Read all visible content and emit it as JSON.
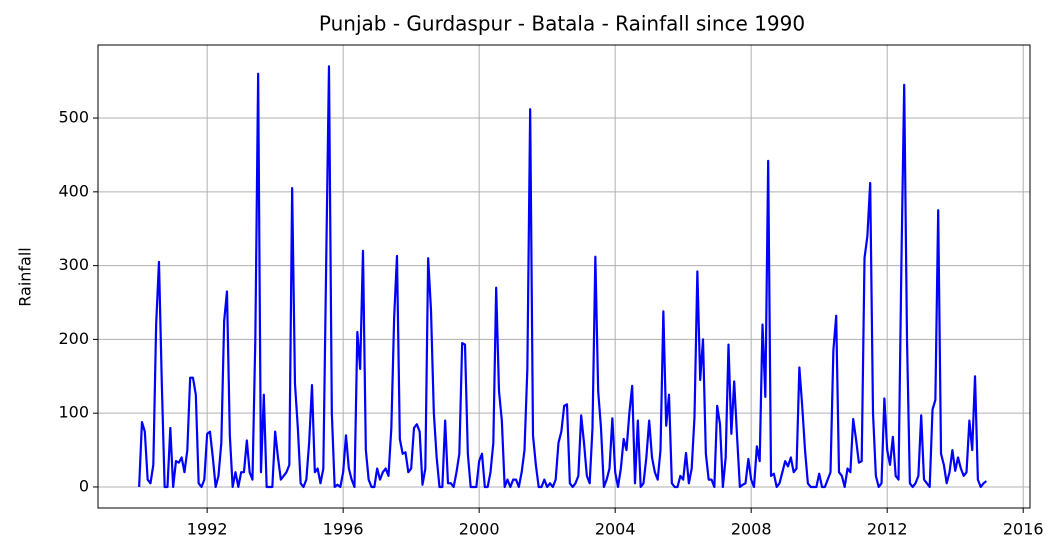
{
  "chart_data": {
    "type": "line",
    "title": "Punjab - Gurdaspur - Batala - Rainfall since 1990",
    "y_label": "Rainfall",
    "xlim": [
      1988.79,
      2016.2
    ],
    "ylim": [
      -28.5,
      599
    ],
    "xticks": [
      1992,
      1996,
      2000,
      2004,
      2008,
      2012,
      2016
    ],
    "yticks": [
      0,
      100,
      200,
      300,
      400,
      500
    ],
    "grid": true,
    "x": [
      1990,
      1990.083,
      1990.167,
      1990.25,
      1990.333,
      1990.417,
      1990.5,
      1990.583,
      1990.667,
      1990.75,
      1990.833,
      1990.917,
      1991,
      1991.083,
      1991.167,
      1991.25,
      1991.333,
      1991.417,
      1991.5,
      1991.583,
      1991.667,
      1991.75,
      1991.833,
      1991.917,
      1992,
      1992.083,
      1992.167,
      1992.25,
      1992.333,
      1992.417,
      1992.5,
      1992.583,
      1992.667,
      1992.75,
      1992.833,
      1992.917,
      1993,
      1993.083,
      1993.167,
      1993.25,
      1993.333,
      1993.417,
      1993.5,
      1993.583,
      1993.667,
      1993.75,
      1993.833,
      1993.917,
      1994,
      1994.083,
      1994.167,
      1994.25,
      1994.333,
      1994.417,
      1994.5,
      1994.583,
      1994.667,
      1994.75,
      1994.833,
      1994.917,
      1995,
      1995.083,
      1995.167,
      1995.25,
      1995.333,
      1995.417,
      1995.5,
      1995.583,
      1995.667,
      1995.75,
      1995.833,
      1995.917,
      1996,
      1996.083,
      1996.167,
      1996.25,
      1996.333,
      1996.417,
      1996.5,
      1996.583,
      1996.667,
      1996.75,
      1996.833,
      1996.917,
      1997,
      1997.083,
      1997.167,
      1997.25,
      1997.333,
      1997.417,
      1997.5,
      1997.583,
      1997.667,
      1997.75,
      1997.833,
      1997.917,
      1998,
      1998.083,
      1998.167,
      1998.25,
      1998.333,
      1998.417,
      1998.5,
      1998.583,
      1998.667,
      1998.75,
      1998.833,
      1998.917,
      1999,
      1999.083,
      1999.167,
      1999.25,
      1999.333,
      1999.417,
      1999.5,
      1999.583,
      1999.667,
      1999.75,
      1999.833,
      1999.917,
      2000,
      2000.083,
      2000.167,
      2000.25,
      2000.333,
      2000.417,
      2000.5,
      2000.583,
      2000.667,
      2000.75,
      2000.833,
      2000.917,
      2001,
      2001.083,
      2001.167,
      2001.25,
      2001.333,
      2001.417,
      2001.5,
      2001.583,
      2001.667,
      2001.75,
      2001.833,
      2001.917,
      2002,
      2002.083,
      2002.167,
      2002.25,
      2002.333,
      2002.417,
      2002.5,
      2002.583,
      2002.667,
      2002.75,
      2002.833,
      2002.917,
      2003,
      2003.083,
      2003.167,
      2003.25,
      2003.333,
      2003.417,
      2003.5,
      2003.583,
      2003.667,
      2003.75,
      2003.833,
      2003.917,
      2004,
      2004.083,
      2004.167,
      2004.25,
      2004.333,
      2004.417,
      2004.5,
      2004.583,
      2004.667,
      2004.75,
      2004.833,
      2004.917,
      2005,
      2005.083,
      2005.167,
      2005.25,
      2005.333,
      2005.417,
      2005.5,
      2005.583,
      2005.667,
      2005.75,
      2005.833,
      2005.917,
      2006,
      2006.083,
      2006.167,
      2006.25,
      2006.333,
      2006.417,
      2006.5,
      2006.583,
      2006.667,
      2006.75,
      2006.833,
      2006.917,
      2007,
      2007.083,
      2007.167,
      2007.25,
      2007.333,
      2007.417,
      2007.5,
      2007.583,
      2007.667,
      2007.75,
      2007.833,
      2007.917,
      2008,
      2008.083,
      2008.167,
      2008.25,
      2008.333,
      2008.417,
      2008.5,
      2008.583,
      2008.667,
      2008.75,
      2008.833,
      2008.917,
      2009,
      2009.083,
      2009.167,
      2009.25,
      2009.333,
      2009.417,
      2009.5,
      2009.583,
      2009.667,
      2009.75,
      2009.833,
      2009.917,
      2010,
      2010.083,
      2010.167,
      2010.25,
      2010.333,
      2010.417,
      2010.5,
      2010.583,
      2010.667,
      2010.75,
      2010.833,
      2010.917,
      2011,
      2011.083,
      2011.167,
      2011.25,
      2011.333,
      2011.417,
      2011.5,
      2011.583,
      2011.667,
      2011.75,
      2011.833,
      2011.917,
      2012,
      2012.083,
      2012.167,
      2012.25,
      2012.333,
      2012.417,
      2012.5,
      2012.583,
      2012.667,
      2012.75,
      2012.833,
      2012.917,
      2013,
      2013.083,
      2013.167,
      2013.25,
      2013.333,
      2013.417,
      2013.5,
      2013.583,
      2013.667,
      2013.75,
      2013.833,
      2013.917,
      2014,
      2014.083,
      2014.167,
      2014.25,
      2014.333,
      2014.417,
      2014.5,
      2014.583,
      2014.667,
      2014.75,
      2014.833,
      2014.917
    ],
    "series": [
      {
        "color": "#0000ff",
        "values": [
          0,
          88,
          75,
          10,
          5,
          30,
          220,
          305,
          140,
          0,
          0,
          80,
          0,
          35,
          33,
          40,
          20,
          50,
          148,
          148,
          125,
          5,
          0,
          10,
          72,
          75,
          40,
          0,
          15,
          60,
          225,
          265,
          70,
          0,
          20,
          0,
          20,
          20,
          63,
          20,
          10,
          200,
          560,
          20,
          125,
          0,
          0,
          0,
          75,
          40,
          10,
          15,
          20,
          30,
          405,
          140,
          80,
          5,
          0,
          10,
          60,
          138,
          20,
          25,
          5,
          25,
          300,
          570,
          100,
          0,
          3,
          0,
          20,
          70,
          25,
          10,
          0,
          210,
          160,
          320,
          50,
          10,
          0,
          0,
          25,
          10,
          20,
          25,
          15,
          80,
          230,
          313,
          65,
          45,
          47,
          20,
          25,
          80,
          85,
          75,
          3,
          25,
          310,
          240,
          100,
          40,
          0,
          0,
          90,
          5,
          5,
          0,
          20,
          45,
          195,
          193,
          45,
          0,
          0,
          0,
          35,
          45,
          0,
          0,
          20,
          60,
          270,
          130,
          90,
          0,
          10,
          0,
          10,
          10,
          0,
          20,
          50,
          160,
          512,
          70,
          30,
          0,
          0,
          10,
          0,
          5,
          0,
          10,
          60,
          75,
          110,
          112,
          5,
          0,
          5,
          15,
          97,
          60,
          15,
          5,
          80,
          312,
          130,
          80,
          0,
          10,
          25,
          93,
          20,
          0,
          25,
          65,
          50,
          100,
          137,
          5,
          90,
          0,
          5,
          40,
          90,
          40,
          20,
          10,
          50,
          238,
          83,
          125,
          5,
          0,
          0,
          15,
          10,
          46,
          5,
          25,
          95,
          292,
          145,
          200,
          45,
          10,
          10,
          0,
          110,
          85,
          0,
          40,
          193,
          72,
          143,
          70,
          0,
          3,
          5,
          38,
          10,
          0,
          55,
          35,
          220,
          122,
          442,
          15,
          18,
          0,
          5,
          20,
          35,
          28,
          40,
          20,
          25,
          162,
          110,
          50,
          5,
          0,
          0,
          0,
          18,
          0,
          0,
          10,
          20,
          185,
          232,
          20,
          15,
          0,
          25,
          20,
          92,
          65,
          33,
          35,
          310,
          340,
          412,
          100,
          15,
          0,
          5,
          120,
          50,
          30,
          68,
          15,
          10,
          300,
          545,
          200,
          5,
          0,
          5,
          15,
          97,
          10,
          5,
          0,
          105,
          118,
          375,
          45,
          30,
          5,
          20,
          50,
          22,
          40,
          25,
          15,
          20,
          90,
          50,
          150,
          10,
          0,
          5,
          8
        ]
      }
    ]
  }
}
